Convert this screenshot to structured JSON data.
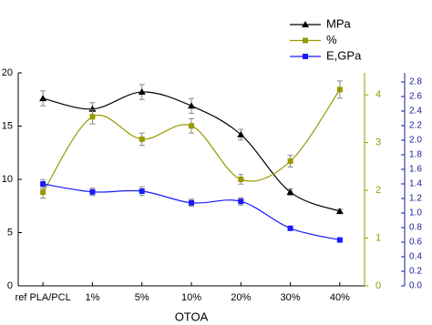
{
  "chart_data": {
    "type": "line",
    "x_label": "OTOA",
    "categories": [
      "ref PLA/PCL",
      "1%",
      "5%",
      "10%",
      "20%",
      "30%",
      "40%"
    ],
    "ylim": [
      0,
      20
    ],
    "yticks": [
      0,
      5,
      10,
      15,
      20
    ],
    "y2lim": [
      0,
      4.46
    ],
    "y2ticks": [
      0,
      1,
      2,
      3,
      4
    ],
    "y3lim": [
      0,
      2.925
    ],
    "y3ticks": [
      {
        "value": 0,
        "label": "0.0"
      },
      0.2,
      0.4,
      0.6,
      0.8,
      {
        "value": 1,
        "label": "1.0"
      },
      1.2,
      1.4,
      1.6,
      1.8,
      {
        "value": 2,
        "label": "2.0"
      },
      2.2,
      2.4,
      2.6,
      2.8
    ],
    "series": [
      {
        "name": "MPa",
        "color": "#000000",
        "marker": "triangle",
        "axis": "y",
        "values": [
          17.6,
          16.6,
          18.2,
          16.9,
          14.2,
          8.8,
          7.0
        ],
        "errors": [
          0.7,
          0.6,
          0.7,
          0.7,
          0.5,
          0.3,
          0.2
        ]
      },
      {
        "name": "%",
        "color": "#999900",
        "marker": "square",
        "axis": "y2",
        "values": [
          1.96,
          3.54,
          3.07,
          3.35,
          2.23,
          2.61,
          4.11
        ],
        "errors": [
          0.12,
          0.15,
          0.13,
          0.15,
          0.1,
          0.12,
          0.18
        ]
      },
      {
        "name": "E,GPa",
        "color": "#1a1aff",
        "marker": "square",
        "axis": "y3",
        "values": [
          1.4,
          1.29,
          1.3,
          1.14,
          1.16,
          0.79,
          0.63
        ],
        "errors": [
          0.06,
          0.05,
          0.06,
          0.05,
          0.05,
          0.02,
          0.01
        ]
      }
    ],
    "axis_colors": {
      "y": "#000000",
      "y2": "#999900",
      "y3": "#1a1a99"
    }
  }
}
